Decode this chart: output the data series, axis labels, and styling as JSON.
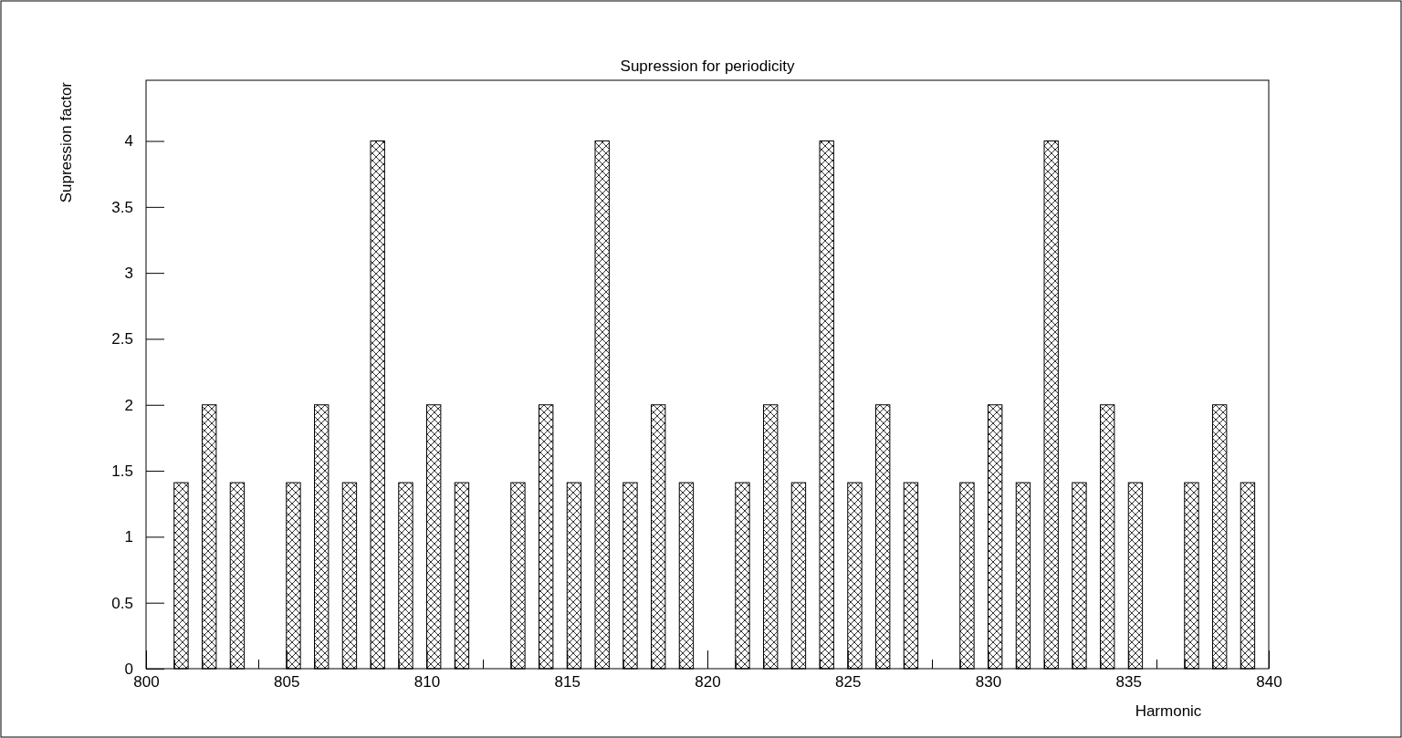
{
  "chart_data": {
    "type": "bar",
    "title": "Supression for periodicity",
    "xlabel": "Harmonic",
    "ylabel": "Supression factor",
    "x": [
      801.25,
      802.25,
      803.25,
      805.25,
      806.25,
      807.25,
      808.25,
      809.25,
      810.25,
      811.25,
      813.25,
      814.25,
      815.25,
      816.25,
      817.25,
      818.25,
      819.25,
      821.25,
      822.25,
      823.25,
      824.25,
      825.25,
      826.25,
      827.25,
      829.25,
      830.25,
      831.25,
      832.25,
      833.25,
      834.25,
      835.25,
      837.25,
      838.25,
      839.25
    ],
    "values": [
      1.41,
      2,
      1.41,
      1.41,
      2,
      1.41,
      4,
      1.41,
      2,
      1.41,
      1.41,
      2,
      1.41,
      4,
      1.41,
      2,
      1.41,
      1.41,
      2,
      1.41,
      4,
      1.41,
      2,
      1.41,
      1.41,
      2,
      1.41,
      4,
      1.41,
      2,
      1.41,
      1.41,
      2,
      1.41
    ],
    "color": "#000000",
    "xlim": [
      800,
      840
    ],
    "ylim": [
      0,
      4.46
    ],
    "grid": false,
    "xticks": [
      800,
      {
        "value": 801,
        "label": null
      },
      {
        "value": 802,
        "label": null
      },
      {
        "value": 803,
        "label": null
      },
      {
        "value": 804,
        "label": null
      },
      805,
      {
        "value": 806,
        "label": null
      },
      {
        "value": 807,
        "label": null
      },
      {
        "value": 808,
        "label": null
      },
      {
        "value": 809,
        "label": null
      },
      810,
      {
        "value": 811,
        "label": null
      },
      {
        "value": 812,
        "label": null
      },
      {
        "value": 813,
        "label": null
      },
      {
        "value": 814,
        "label": null
      },
      815,
      {
        "value": 816,
        "label": null
      },
      {
        "value": 817,
        "label": null
      },
      {
        "value": 818,
        "label": null
      },
      {
        "value": 819,
        "label": null
      },
      820,
      {
        "value": 821,
        "label": null
      },
      {
        "value": 822,
        "label": null
      },
      {
        "value": 823,
        "label": null
      },
      {
        "value": 824,
        "label": null
      },
      825,
      {
        "value": 826,
        "label": null
      },
      {
        "value": 827,
        "label": null
      },
      {
        "value": 828,
        "label": null
      },
      {
        "value": 829,
        "label": null
      },
      830,
      {
        "value": 831,
        "label": null
      },
      {
        "value": 832,
        "label": null
      },
      {
        "value": 833,
        "label": null
      },
      {
        "value": 834,
        "label": null
      },
      835,
      {
        "value": 836,
        "label": null
      },
      {
        "value": 837,
        "label": null
      },
      {
        "value": 838,
        "label": null
      },
      {
        "value": 839,
        "label": null
      },
      840
    ],
    "yticks": [
      0,
      0.5,
      1,
      1.5,
      2,
      2.5,
      3,
      3.5,
      4
    ]
  }
}
